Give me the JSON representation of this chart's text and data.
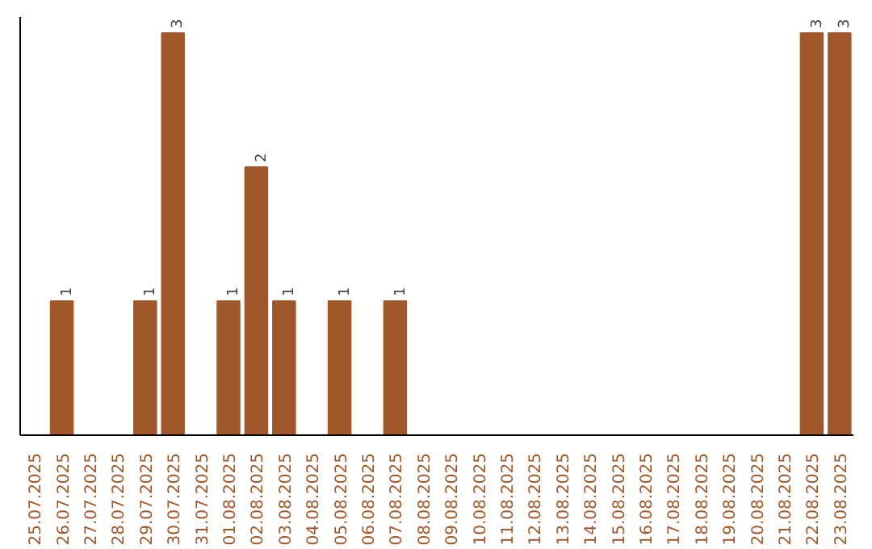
{
  "chart_data": {
    "type": "bar",
    "categories": [
      "25.07.2025",
      "26.07.2025",
      "27.07.2025",
      "28.07.2025",
      "29.07.2025",
      "30.07.2025",
      "31.07.2025",
      "01.08.2025",
      "02.08.2025",
      "03.08.2025",
      "04.08.2025",
      "05.08.2025",
      "06.08.2025",
      "07.08.2025",
      "08.08.2025",
      "09.08.2025",
      "10.08.2025",
      "11.08.2025",
      "12.08.2025",
      "13.08.2025",
      "14.08.2025",
      "15.08.2025",
      "16.08.2025",
      "17.08.2025",
      "18.08.2025",
      "19.08.2025",
      "20.08.2025",
      "21.08.2025",
      "22.08.2025",
      "23.08.2025"
    ],
    "values": [
      0,
      1,
      0,
      0,
      1,
      3,
      0,
      1,
      2,
      1,
      0,
      1,
      0,
      1,
      0,
      0,
      0,
      0,
      0,
      0,
      0,
      0,
      0,
      0,
      0,
      0,
      0,
      0,
      3,
      3
    ],
    "value_labels": [
      null,
      "1",
      null,
      null,
      "1",
      "3",
      null,
      "1",
      "2",
      "1",
      null,
      "1",
      null,
      "1",
      null,
      null,
      null,
      null,
      null,
      null,
      null,
      null,
      null,
      null,
      null,
      null,
      null,
      null,
      "3",
      "3"
    ],
    "color": "#a0582a",
    "ylim": [
      0,
      3.12
    ],
    "tick_labels": "x",
    "grid": false
  }
}
